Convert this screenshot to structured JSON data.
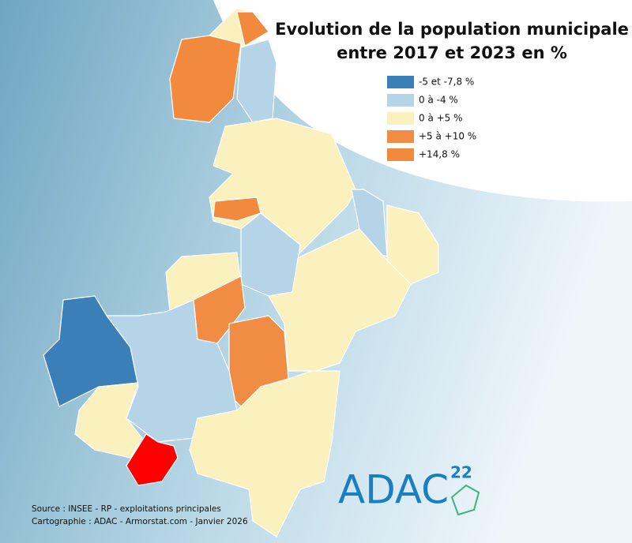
{
  "title_lines": [
    "Evolution de la population municipale",
    "entre 2017 et 2023 en %"
  ],
  "legend": [
    {
      "label": "-5 et -7,8 %",
      "color": "#3a7fb8"
    },
    {
      "label": "0 à -4 %",
      "color": "#b5d4e7"
    },
    {
      "label": "0 à +5 %",
      "color": "#fbf1bf"
    },
    {
      "label": "+5 à +10 %",
      "color": "#f08c44"
    },
    {
      "label": "+14,8 %",
      "color": "#f28a3e"
    }
  ],
  "source_lines": [
    "Source : INSEE - RP - exploitations principales",
    "Cartographie : ADAC - Armorstat.com - Janvier 2026"
  ],
  "logo": {
    "text": "ADAC",
    "superscript": "22"
  }
}
